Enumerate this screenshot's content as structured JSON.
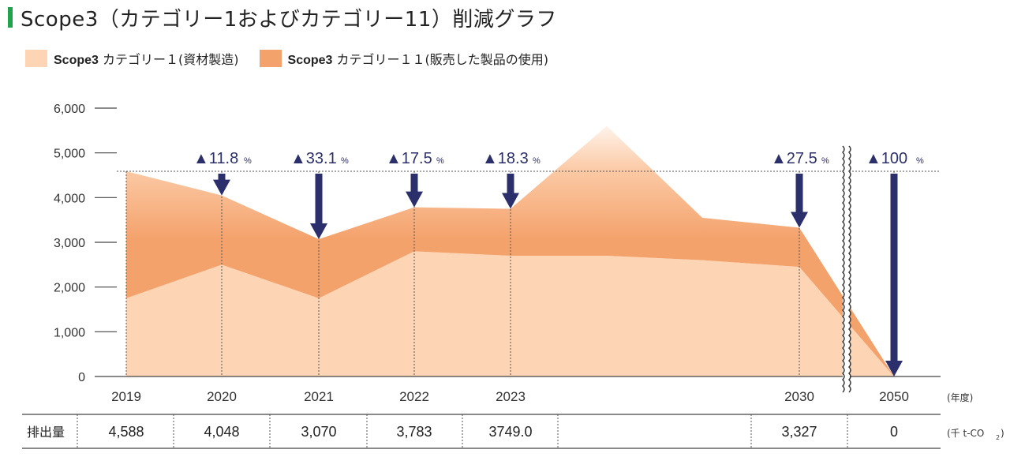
{
  "title": "Scope3（カテゴリー1およびカテゴリー11）削減グラフ",
  "legend": [
    {
      "label_bold": "Scope3",
      "label": "カテゴリー１(資材製造)",
      "color": "#fdd5b5"
    },
    {
      "label_bold": "Scope3",
      "label": "カテゴリー１１(販売した製品の使用)",
      "color": "#f4a26c"
    }
  ],
  "colors": {
    "category1": "#fdd5b5",
    "category11": "#f4a26c",
    "arrow": "#2b2f6b",
    "grid": "#555555",
    "title_marker": "#22a24a"
  },
  "chart_data": {
    "type": "area",
    "stacked": true,
    "y_ticks": [
      "6,000",
      "5,000",
      "4,000",
      "3,000",
      "2,000",
      "1,000",
      "0"
    ],
    "ylim": [
      0,
      6000
    ],
    "x_unit_label": "(年度)",
    "categories": [
      "2019",
      "2020",
      "2021",
      "2022",
      "2023",
      "2030",
      "2050"
    ],
    "series": [
      {
        "name": "Scope3 カテゴリー１(資材製造)",
        "values": [
          1750,
          2500,
          1750,
          2800,
          2700,
          2450,
          0
        ]
      },
      {
        "name": "Scope3 カテゴリー１１(販売した製品の使用)",
        "values": [
          2838,
          1548,
          1320,
          983,
          1049,
          877,
          0
        ]
      }
    ],
    "interim": [
      {
        "after": "2023",
        "cat1": 2700,
        "total": 5600
      },
      {
        "after": "2023",
        "cat1": 2600,
        "total": 3550
      }
    ],
    "reference_line": 4588,
    "reductions": [
      {
        "year": "2020",
        "value": "▲11.8",
        "unit": "%"
      },
      {
        "year": "2021",
        "value": "▲33.1",
        "unit": "%"
      },
      {
        "year": "2022",
        "value": "▲17.5",
        "unit": "%"
      },
      {
        "year": "2023",
        "value": "▲18.3",
        "unit": "%"
      },
      {
        "year": "2030",
        "value": "▲27.5",
        "unit": "%"
      },
      {
        "year": "2050",
        "value": "▲100",
        "unit": "%"
      }
    ],
    "table": {
      "row_label": "排出量",
      "values": [
        "4,588",
        "4,048",
        "3,070",
        "3,783",
        "3749.0",
        "",
        "3,327",
        "0"
      ],
      "unit": "(千 t-CO",
      "unit_sub": "2",
      "unit_close": ")"
    }
  }
}
